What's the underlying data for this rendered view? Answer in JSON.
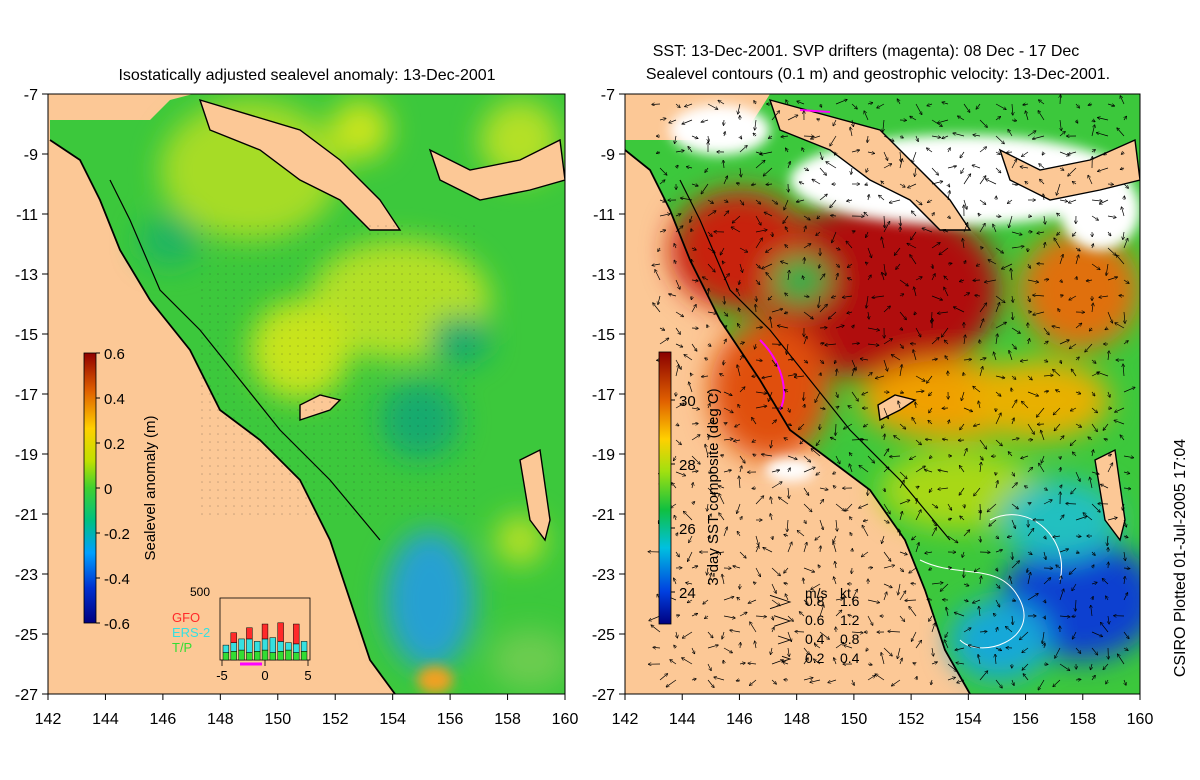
{
  "left_panel": {
    "title": "Isostatically adjusted sealevel anomaly: 13-Dec-2001",
    "y_ticks": [
      "-7",
      "-9",
      "-11",
      "-13",
      "-15",
      "-17",
      "-19",
      "-21",
      "-23",
      "-25",
      "-27"
    ],
    "x_ticks": [
      "142",
      "144",
      "146",
      "148",
      "150",
      "152",
      "154",
      "156",
      "158",
      "160"
    ],
    "colorbar": {
      "label": "Sealevel anomaly (m)",
      "ticks": [
        "0.6",
        "0.4",
        "0.2",
        "0",
        "-0.2",
        "-0.4",
        "-0.6"
      ],
      "range": [
        -0.6,
        0.6
      ]
    },
    "histogram": {
      "max_label": "500",
      "legend": [
        {
          "name": "GFO",
          "color": "#ff2a2a"
        },
        {
          "name": "ERS-2",
          "color": "#36e0e0"
        },
        {
          "name": "T/P",
          "color": "#33dd33"
        }
      ],
      "x_ticks": [
        "-5",
        "0",
        "5"
      ],
      "days": [
        -5,
        -4,
        -3,
        -2,
        -1,
        0,
        1,
        2,
        3,
        4,
        5
      ],
      "tp": [
        60,
        70,
        80,
        60,
        70,
        80,
        60,
        70,
        80,
        60,
        70
      ],
      "ers2": [
        60,
        70,
        90,
        110,
        80,
        90,
        120,
        80,
        60,
        70,
        80
      ],
      "gfo": [
        0,
        80,
        0,
        90,
        0,
        120,
        0,
        150,
        0,
        160,
        0
      ]
    }
  },
  "right_panel": {
    "title_line1": "SST: 13-Dec-2001. SVP drifters (magenta): 08 Dec - 17 Dec",
    "title_line2": "Sealevel contours (0.1 m) and geostrophic velocity: 13-Dec-2001.",
    "y_ticks": [
      "-7",
      "-9",
      "-11",
      "-13",
      "-15",
      "-17",
      "-19",
      "-21",
      "-23",
      "-25",
      "-27"
    ],
    "x_ticks": [
      "142",
      "144",
      "146",
      "148",
      "150",
      "152",
      "154",
      "156",
      "158",
      "160"
    ],
    "colorbar": {
      "label": "3-day SST composite (deg C)",
      "ticks": [
        "30",
        "28",
        "26",
        "24"
      ],
      "range": [
        23,
        31.5
      ]
    },
    "velocity_key": {
      "header_ms": "m/s",
      "header_kt": "kt",
      "rows": [
        {
          "ms": "0.8",
          "kt": "1.6"
        },
        {
          "ms": "0.6",
          "kt": "1.2"
        },
        {
          "ms": "0.4",
          "kt": "0.8"
        },
        {
          "ms": "0.2",
          "kt": "0.4"
        }
      ]
    }
  },
  "credit": "CSIRO Plotted 01-Jul-2005 17:04",
  "colors": {
    "land": "#fcc896",
    "cloud": "#ffffff",
    "coast": "#000000"
  }
}
